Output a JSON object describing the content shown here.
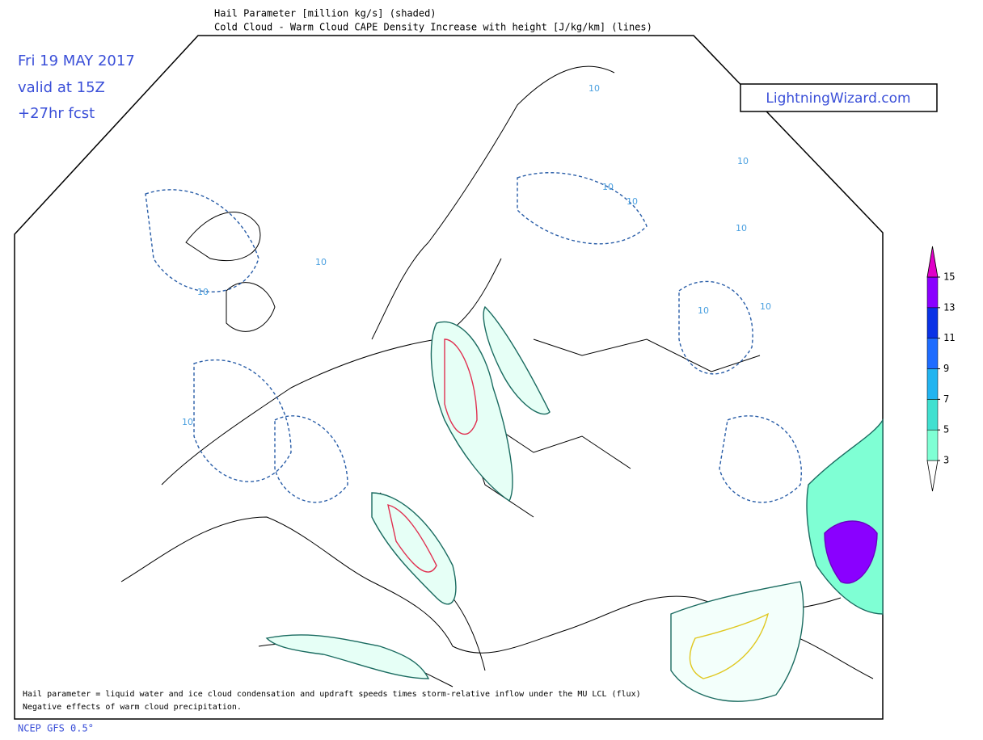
{
  "header": {
    "title": "Hail Parameter [million kg/s] (shaded)",
    "subtitle": "Cold Cloud - Warm Cloud CAPE Density Increase with height [J/kg/km] (lines)"
  },
  "info": {
    "date": "Fri 19 MAY 2017",
    "valid": "valid at 15Z",
    "forecast": "+27hr fcst"
  },
  "logo": "LightningWizard.com",
  "colorbar": {
    "ticks": [
      3,
      5,
      7,
      9,
      11,
      13,
      15
    ],
    "colors": [
      "#ffffff",
      "#7fffd4",
      "#40e0d0",
      "#22b4f0",
      "#1e6cff",
      "#0a32e6",
      "#8a00ff",
      "#c83cf0",
      "#e000c8"
    ]
  },
  "contour_labels": [
    "10",
    "10",
    "10",
    "10",
    "10",
    "10",
    "10",
    "10",
    "10",
    "10"
  ],
  "footnote": {
    "line1": "Hail parameter = liquid water and ice cloud condensation and updraft speeds times storm-relative inflow under the MU LCL (flux)",
    "line2": "Negative effects of warm cloud precipitation."
  },
  "source": "NCEP GFS 0.5°"
}
